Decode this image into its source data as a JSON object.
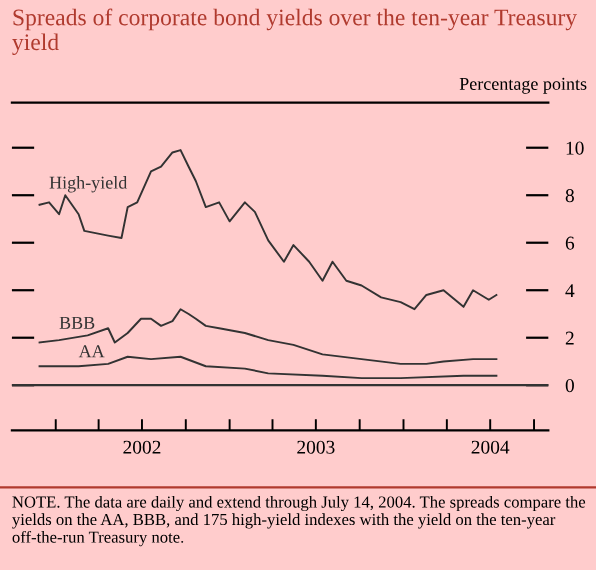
{
  "chart_data": {
    "type": "line",
    "title": "Spreads of corporate bond yields over the ten-year Treasury yield",
    "ylabel": "Percentage points",
    "series": [
      {
        "name": "High-yield",
        "color": "#333333",
        "x": [
          "2001-11-28",
          "2001-12-18",
          "2002-01-08",
          "2002-01-21",
          "2002-02-18",
          "2002-03-02",
          "2002-04-21",
          "2002-05-19",
          "2002-06-01",
          "2002-06-21",
          "2002-07-20",
          "2002-08-10",
          "2002-09-03",
          "2002-09-20",
          "2002-10-07",
          "2002-10-22",
          "2002-11-12",
          "2002-12-10",
          "2003-01-01",
          "2003-02-02",
          "2003-02-23",
          "2003-03-23",
          "2003-04-25",
          "2003-05-15",
          "2003-06-17",
          "2003-07-15",
          "2003-08-05",
          "2003-09-03",
          "2003-10-05",
          "2003-11-15",
          "2003-12-26",
          "2004-01-24",
          "2004-02-18",
          "2004-03-25",
          "2004-05-06",
          "2004-05-26",
          "2004-06-28",
          "2004-07-14"
        ],
        "values": [
          7.6,
          7.7,
          7.2,
          8.0,
          7.2,
          6.5,
          6.3,
          6.2,
          7.5,
          7.7,
          9.0,
          9.2,
          9.8,
          9.9,
          9.2,
          8.6,
          7.5,
          7.7,
          6.9,
          7.7,
          7.3,
          6.1,
          5.2,
          5.9,
          5.2,
          4.4,
          5.2,
          4.4,
          4.2,
          3.7,
          3.5,
          3.2,
          3.8,
          4.0,
          3.3,
          4.0,
          3.6,
          3.8
        ]
      },
      {
        "name": "BBB",
        "color": "#333333",
        "x": [
          "2001-11-28",
          "2002-01-08",
          "2002-03-09",
          "2002-04-21",
          "2002-05-05",
          "2002-06-01",
          "2002-06-29",
          "2002-07-20",
          "2002-08-10",
          "2002-09-03",
          "2002-09-20",
          "2002-10-07",
          "2002-10-22",
          "2002-11-12",
          "2002-12-10",
          "2003-02-02",
          "2003-03-23",
          "2003-05-15",
          "2003-07-15",
          "2003-10-05",
          "2003-12-26",
          "2004-02-18",
          "2004-03-25",
          "2004-05-26",
          "2004-07-14"
        ],
        "values": [
          1.8,
          1.9,
          2.1,
          2.4,
          1.8,
          2.2,
          2.8,
          2.8,
          2.5,
          2.7,
          3.2,
          3.0,
          2.8,
          2.5,
          2.4,
          2.2,
          1.9,
          1.7,
          1.3,
          1.1,
          0.9,
          0.9,
          1.0,
          1.1,
          1.1
        ]
      },
      {
        "name": "AA",
        "color": "#333333",
        "x": [
          "2001-11-28",
          "2002-02-18",
          "2002-04-21",
          "2002-06-01",
          "2002-07-20",
          "2002-09-20",
          "2002-11-12",
          "2003-02-02",
          "2003-03-23",
          "2003-07-15",
          "2003-10-05",
          "2003-12-26",
          "2004-05-06",
          "2004-07-14"
        ],
        "values": [
          0.8,
          0.8,
          0.9,
          1.2,
          1.1,
          1.2,
          0.8,
          0.7,
          0.5,
          0.4,
          0.3,
          0.3,
          0.4,
          0.4
        ]
      }
    ],
    "ylim": [
      -1.9,
      11.9
    ],
    "yticks": [
      0,
      2,
      4,
      6,
      8,
      10
    ],
    "xlim": [
      "2001-10-01",
      "2004-10-31"
    ],
    "xticks": [
      {
        "value": "2002-01-01",
        "label": null
      },
      {
        "value": "2002-04-01",
        "label": null
      },
      {
        "value": "2002-07-01",
        "label": "2002"
      },
      {
        "value": "2002-10-01",
        "label": null
      },
      {
        "value": "2003-01-01",
        "label": null
      },
      {
        "value": "2003-04-01",
        "label": null
      },
      {
        "value": "2003-07-01",
        "label": "2003"
      },
      {
        "value": "2003-10-01",
        "label": null
      },
      {
        "value": "2004-01-01",
        "label": null
      },
      {
        "value": "2004-04-01",
        "label": null
      },
      {
        "value": "2004-07-01",
        "label": "2004"
      },
      {
        "value": "2004-10-01",
        "label": null
      }
    ],
    "ref_lines": [
      {
        "axis": "y",
        "value": 0,
        "color": "#333333"
      }
    ],
    "annotations": [
      "NOTE. The data are daily and extend through July 14, 2004. The spreads compare the yields on the AA, BBB, and 175 high-yield indexes with the yield on the ten-year off-the-run Treasury note."
    ],
    "grid": false,
    "legend": false,
    "marker": "none",
    "line_style": "solid"
  }
}
